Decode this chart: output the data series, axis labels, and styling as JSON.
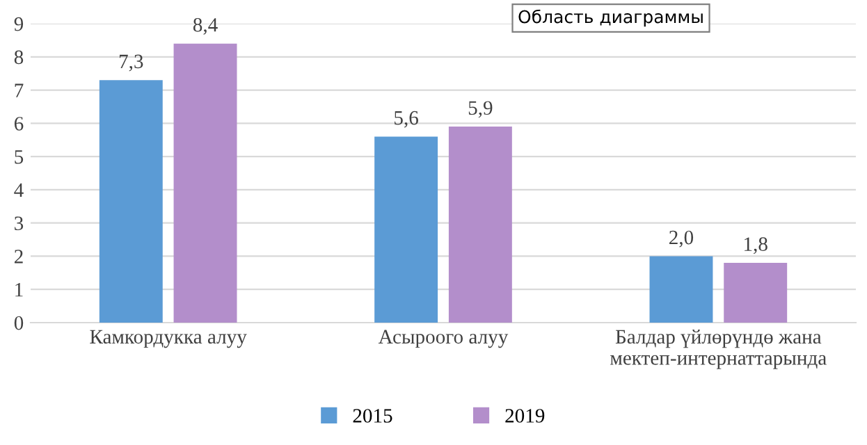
{
  "chart_data": {
    "type": "bar",
    "categories": [
      "Камкордукка алуу",
      "Асыроого алуу",
      "Балдар үйлөрүндө жана\nмектеп-интернаттарында"
    ],
    "series": [
      {
        "name": "2015",
        "color": "#5b9bd5",
        "values": [
          7.3,
          5.6,
          2.0
        ],
        "value_labels": [
          "7,3",
          "5,6",
          "2,0"
        ]
      },
      {
        "name": "2019",
        "color": "#b38ecb",
        "values": [
          8.4,
          5.9,
          1.8
        ],
        "value_labels": [
          "8,4",
          "5,9",
          "1,8"
        ]
      }
    ],
    "ylim": [
      0,
      9
    ],
    "yticks": [
      0,
      1,
      2,
      3,
      4,
      5,
      6,
      7,
      8,
      9
    ],
    "grid": "y",
    "legend": "bottom",
    "annotations": [
      "Область диаграммы"
    ]
  }
}
